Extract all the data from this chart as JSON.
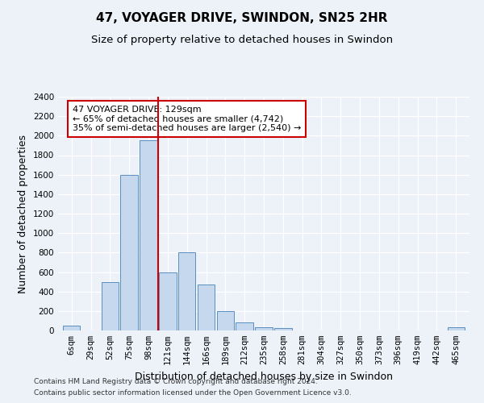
{
  "title": "47, VOYAGER DRIVE, SWINDON, SN25 2HR",
  "subtitle": "Size of property relative to detached houses in Swindon",
  "xlabel": "Distribution of detached houses by size in Swindon",
  "ylabel": "Number of detached properties",
  "categories": [
    "6sqm",
    "29sqm",
    "52sqm",
    "75sqm",
    "98sqm",
    "121sqm",
    "144sqm",
    "166sqm",
    "189sqm",
    "212sqm",
    "235sqm",
    "258sqm",
    "281sqm",
    "304sqm",
    "327sqm",
    "350sqm",
    "373sqm",
    "396sqm",
    "419sqm",
    "442sqm",
    "465sqm"
  ],
  "values": [
    50,
    0,
    500,
    1600,
    1950,
    600,
    800,
    475,
    200,
    80,
    30,
    25,
    0,
    0,
    0,
    0,
    0,
    0,
    0,
    0,
    30
  ],
  "bar_color": "#c5d8ed",
  "bar_edge_color": "#5a8fc0",
  "vline_x_index": 5,
  "vline_color": "#cc0000",
  "annotation_text": "47 VOYAGER DRIVE: 129sqm\n← 65% of detached houses are smaller (4,742)\n35% of semi-detached houses are larger (2,540) →",
  "annotation_box_color": "#ffffff",
  "annotation_box_edge": "#cc0000",
  "ylim": [
    0,
    2400
  ],
  "yticks": [
    0,
    200,
    400,
    600,
    800,
    1000,
    1200,
    1400,
    1600,
    1800,
    2000,
    2200,
    2400
  ],
  "bg_color": "#edf2f9",
  "plot_bg_color": "#edf2f9",
  "footer1": "Contains HM Land Registry data © Crown copyright and database right 2024.",
  "footer2": "Contains public sector information licensed under the Open Government Licence v3.0.",
  "title_fontsize": 11,
  "subtitle_fontsize": 9.5,
  "axis_label_fontsize": 9,
  "tick_fontsize": 7.5,
  "annotation_fontsize": 8
}
